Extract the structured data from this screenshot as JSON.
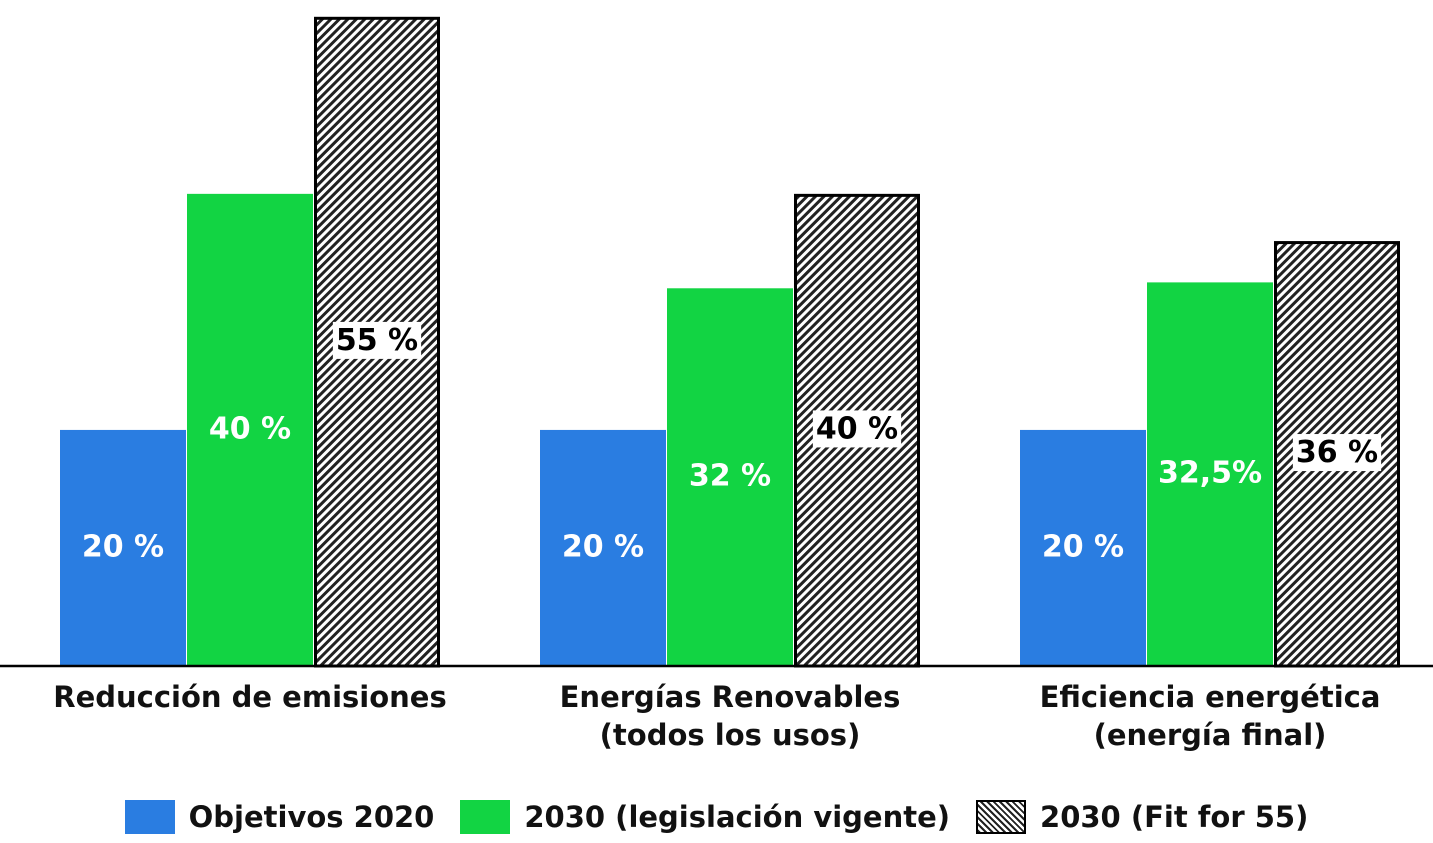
{
  "chart_data": {
    "type": "bar",
    "categories": [
      "Reducción de emisiones",
      "Energías Renovables\n(todos los usos)",
      "Eficiencia energética\n(energía final)"
    ],
    "series": [
      {
        "name": "Objetivos 2020",
        "color": "#2a7de1",
        "values": [
          20,
          20,
          20
        ],
        "value_labels": [
          "20 %",
          "20 %",
          "20 %"
        ]
      },
      {
        "name": "2030 (legislación vigente)",
        "color": "#12d443",
        "values": [
          40,
          32,
          32.5
        ],
        "value_labels": [
          "40 %",
          "32 %",
          "32,5%"
        ]
      },
      {
        "name": "2030 (Fit for 55)",
        "color": "hatch",
        "values": [
          55,
          40,
          36
        ],
        "value_labels": [
          "55 %",
          "40 %",
          "36 %"
        ]
      }
    ],
    "ylim": [
      0,
      56
    ]
  }
}
